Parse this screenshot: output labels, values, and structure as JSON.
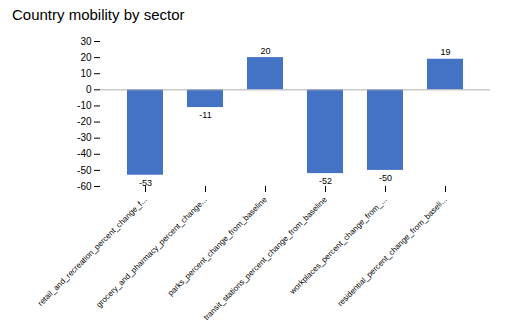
{
  "chart_data": {
    "type": "bar",
    "title": "Country mobility by sector",
    "categories": [
      "retail_and_recreation_percent_change_f...",
      "grocery_and_pharmacy_percent_change...",
      "parks_percent_change_from_baseline",
      "transit_stations_percent_change_from_baseline",
      "workplaces_percent_change_from_...",
      "residential_percent_change_from_baseli..."
    ],
    "values": [
      -53,
      -11,
      20,
      -52,
      -50,
      19
    ],
    "color": "#4472C4",
    "ylim": [
      -60,
      30
    ],
    "yticks": [
      -60,
      -50,
      -40,
      -30,
      -20,
      -10,
      0,
      10,
      20,
      30
    ],
    "grid": false,
    "data_labels": true
  }
}
